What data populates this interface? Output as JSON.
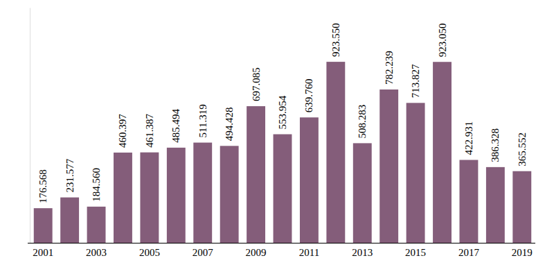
{
  "chart_data": {
    "type": "bar",
    "categories": [
      "2001",
      null,
      "2003",
      null,
      "2005",
      null,
      "2007",
      null,
      "2009",
      null,
      "2011",
      null,
      "2013",
      null,
      "2015",
      null,
      "2017",
      null,
      "2019"
    ],
    "values": [
      176568,
      231577,
      184560,
      460397,
      461387,
      485494,
      511319,
      494428,
      697085,
      553954,
      639760,
      923550,
      508283,
      782239,
      713827,
      923050,
      422931,
      386328,
      365552
    ],
    "value_labels": [
      "176.568",
      "231.577",
      "184.560",
      "460.397",
      "461.387",
      "485.494",
      "511.319",
      "494.428",
      "697.085",
      "553.954",
      "639.760",
      "923.550",
      "508.283",
      "782.239",
      "713.827",
      "923.050",
      "422.931",
      "386.328",
      "365.552"
    ],
    "color": "#845d7a",
    "ylim": [
      0,
      1200000
    ],
    "yticks": [
      0
    ],
    "grid": false,
    "data_labels": true,
    "tick_labels": "x"
  }
}
